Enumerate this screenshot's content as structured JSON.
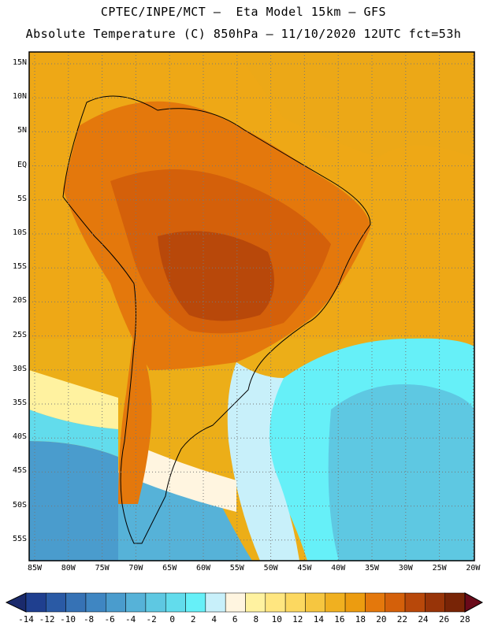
{
  "title_line1": "CPTEC/INPE/MCT –  Eta Model 15km – GFS",
  "title_line2": "Absolute Temperature (C) 850hPa – 11/10/2020 12UTC fct=53h",
  "map": {
    "lat_labels": [
      "15N",
      "10N",
      "5N",
      "EQ",
      "5S",
      "10S",
      "15S",
      "20S",
      "25S",
      "30S",
      "35S",
      "40S",
      "45S",
      "50S",
      "55S"
    ],
    "lon_labels": [
      "85W",
      "80W",
      "75W",
      "70W",
      "65W",
      "60W",
      "55W",
      "50W",
      "45W",
      "40W",
      "35W",
      "30W",
      "25W",
      "20W"
    ]
  },
  "colorbar": {
    "labels": [
      "-14",
      "-12",
      "-10",
      "-8",
      "-6",
      "-4",
      "-2",
      "0",
      "2",
      "4",
      "6",
      "8",
      "10",
      "12",
      "14",
      "16",
      "18",
      "20",
      "22",
      "24",
      "26",
      "28"
    ],
    "colors": [
      "#1f3f8f",
      "#2a5aa5",
      "#3672b5",
      "#3f86c2",
      "#4a9ccd",
      "#56b2d8",
      "#5ec8e2",
      "#62dcec",
      "#66f0f8",
      "#c8f0fa",
      "#fff5e0",
      "#fff2a0",
      "#ffe680",
      "#fcd860",
      "#f6c640",
      "#f0b020",
      "#ec9c10",
      "#e4780c",
      "#d4600a",
      "#b8480a",
      "#983408",
      "#782406"
    ],
    "left_arrow_color": "#1a2a6c",
    "right_arrow_color": "#6a0a1a"
  }
}
